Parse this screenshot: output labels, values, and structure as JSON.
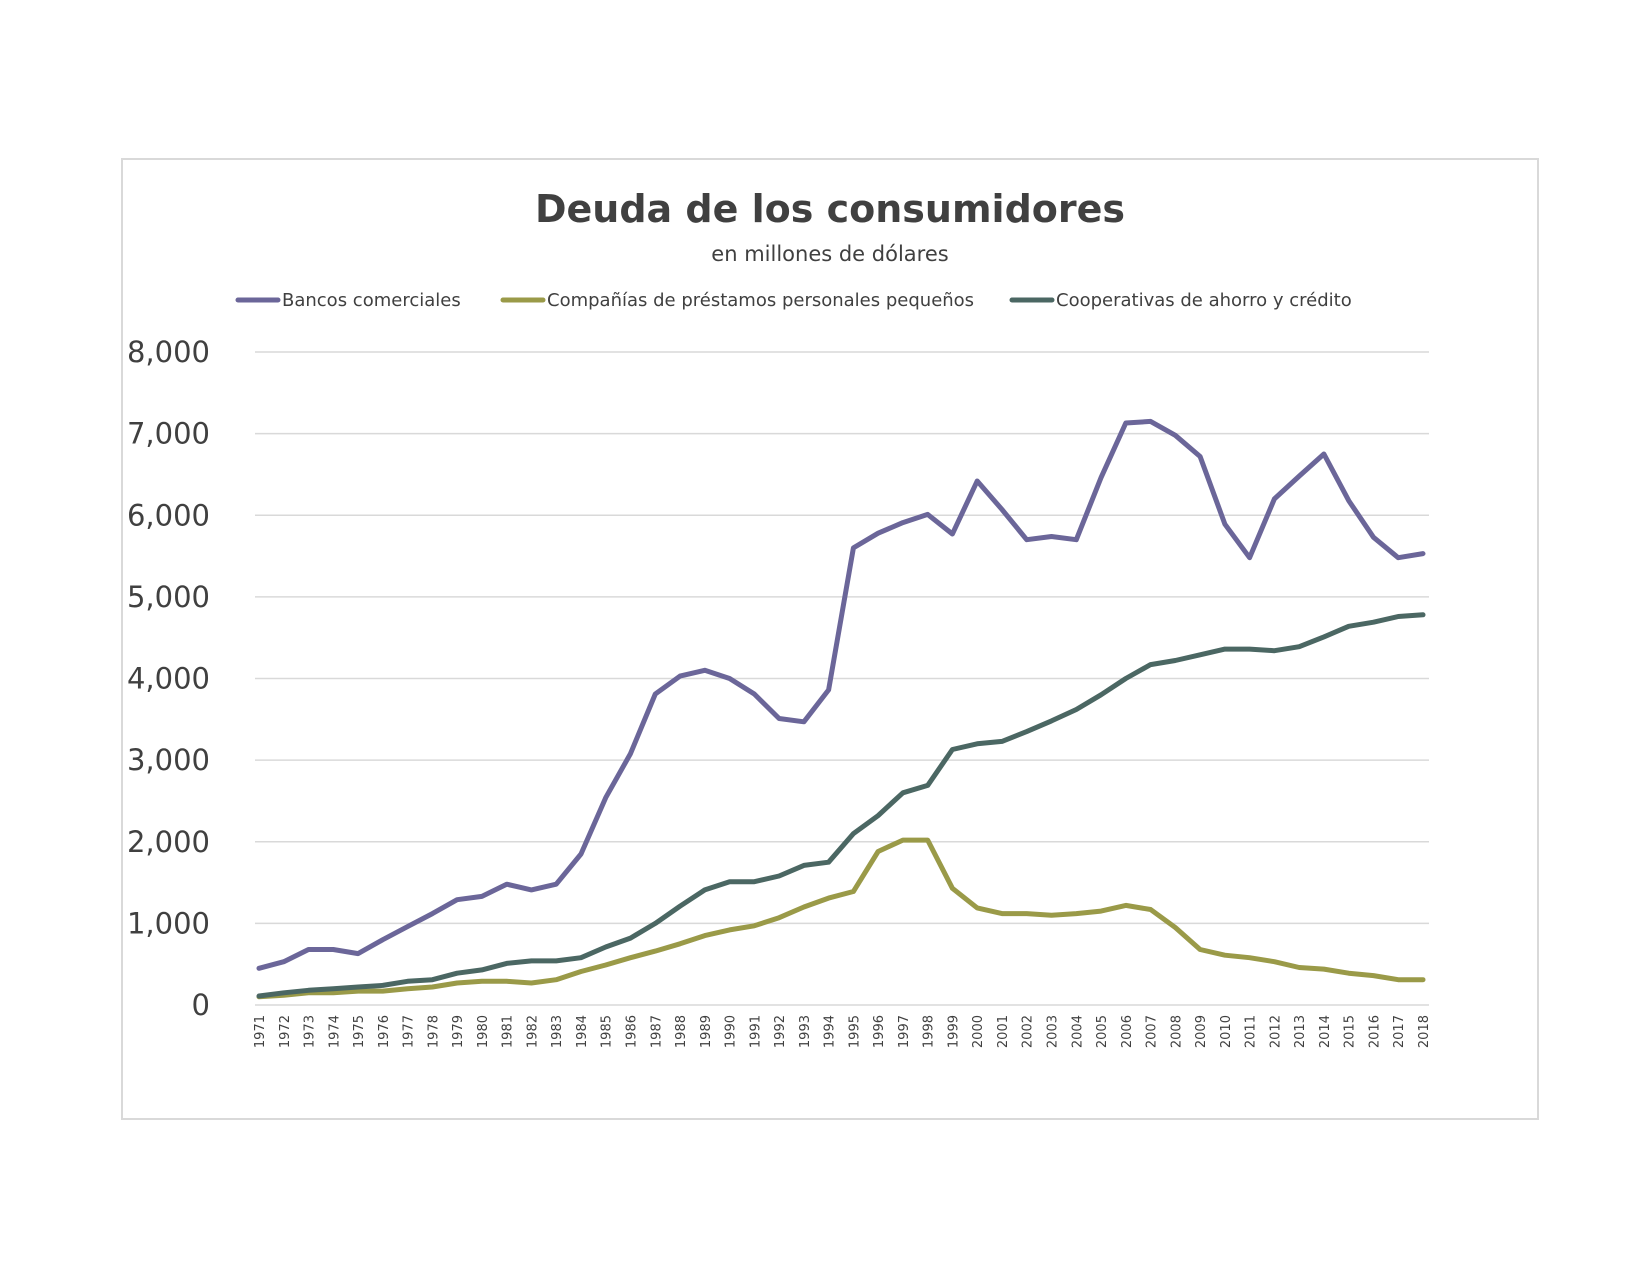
{
  "chart_data": {
    "type": "line",
    "title": "Deuda de los consumidores",
    "subtitle": "en millones  de dólares",
    "xlabel": "",
    "ylabel": "",
    "ylim": [
      0,
      8000
    ],
    "yticks": [
      "0",
      "1,000",
      "2,000",
      "3,000",
      "4,000",
      "5,000",
      "6,000",
      "7,000",
      "8,000"
    ],
    "ytick_values": [
      0,
      1000,
      2000,
      3000,
      4000,
      5000,
      6000,
      7000,
      8000
    ],
    "grid": true,
    "legend_position": "top",
    "categories": [
      "1971",
      "1972",
      "1973",
      "1974",
      "1975",
      "1976",
      "1977",
      "1978",
      "1979",
      "1980",
      "1981",
      "1982",
      "1983",
      "1984",
      "1985",
      "1986",
      "1987",
      "1988",
      "1989",
      "1990",
      "1991",
      "1992",
      "1993",
      "1994",
      "1995",
      "1996",
      "1997",
      "1998",
      "1999",
      "2000",
      "2001",
      "2002",
      "2003",
      "2004",
      "2005",
      "2006",
      "2007",
      "2008",
      "2009",
      "2010",
      "2011",
      "2012",
      "2013",
      "2014",
      "2015",
      "2016",
      "2017",
      "2018"
    ],
    "series": [
      {
        "name": "Bancos comerciales",
        "color": "#6b6699",
        "values": [
          450,
          530,
          680,
          680,
          630,
          800,
          960,
          1120,
          1290,
          1330,
          1480,
          1410,
          1480,
          1850,
          2540,
          3080,
          3810,
          4030,
          4100,
          4000,
          3810,
          3510,
          3470,
          3860,
          5600,
          5780,
          5910,
          6010,
          5770,
          6420,
          6070,
          5700,
          5740,
          5700,
          6460,
          7130,
          7150,
          6980,
          6720,
          5890,
          5480,
          6200,
          6480,
          6750,
          6180,
          5730,
          5480,
          5530
        ]
      },
      {
        "name": "Compañías de préstamos personales pequeños",
        "color": "#9a9a48",
        "values": [
          100,
          120,
          150,
          150,
          170,
          170,
          200,
          220,
          270,
          290,
          290,
          270,
          310,
          410,
          490,
          580,
          660,
          750,
          850,
          920,
          970,
          1070,
          1200,
          1310,
          1390,
          1880,
          2020,
          2020,
          1430,
          1190,
          1120,
          1120,
          1100,
          1120,
          1150,
          1220,
          1170,
          950,
          680,
          610,
          580,
          530,
          460,
          440,
          390,
          360,
          310,
          310
        ]
      },
      {
        "name": "Cooperativas de ahorro y crédito",
        "color": "#4b6763",
        "values": [
          110,
          150,
          180,
          200,
          220,
          240,
          290,
          310,
          390,
          430,
          510,
          540,
          540,
          580,
          710,
          820,
          1000,
          1210,
          1410,
          1510,
          1510,
          1580,
          1710,
          1750,
          2100,
          2320,
          2600,
          2690,
          3130,
          3200,
          3230,
          3350,
          3480,
          3620,
          3800,
          4000,
          4170,
          4220,
          4290,
          4360,
          4360,
          4340,
          4390,
          4510,
          4640,
          4690,
          4760,
          4780
        ]
      }
    ]
  }
}
